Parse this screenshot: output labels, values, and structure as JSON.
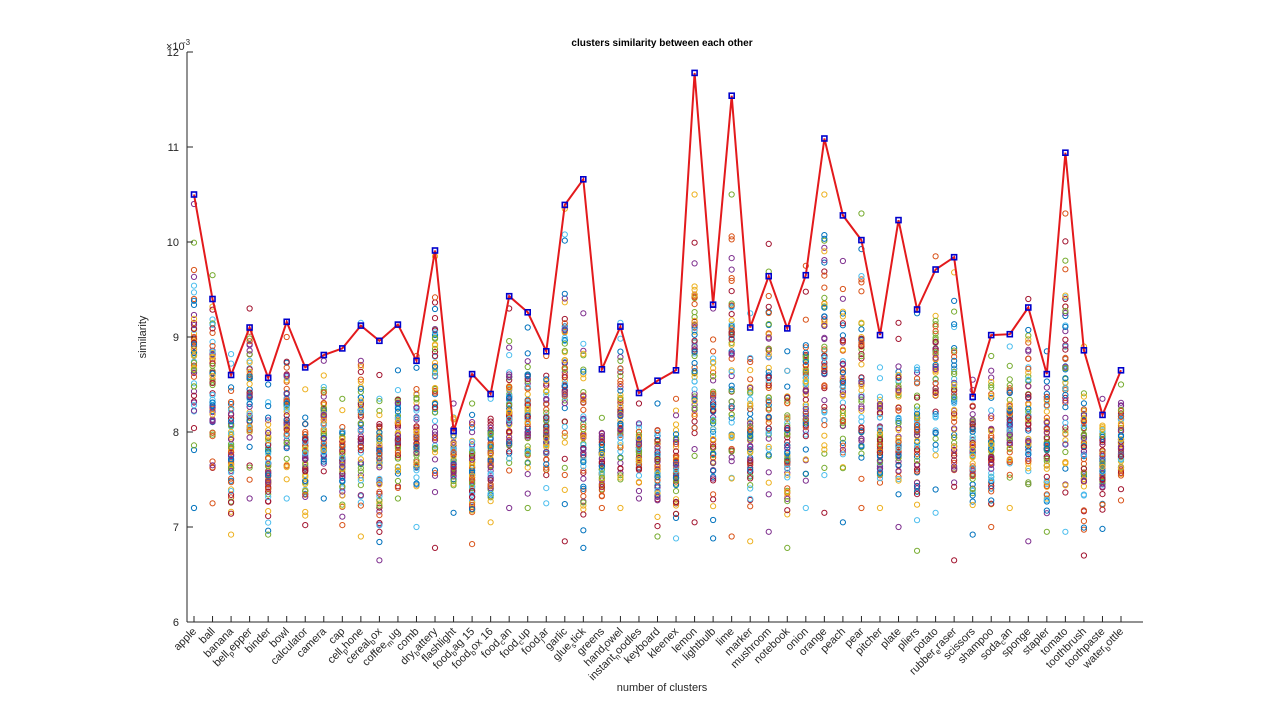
{
  "chart_data": {
    "type": "scatter",
    "title": "clusters similarity between each other",
    "xlabel": "number of clusters",
    "ylabel": "similarity",
    "y_exponent_label": "×10",
    "y_exponent_power": "-3",
    "ylim": [
      6,
      12
    ],
    "yticks": [
      6,
      7,
      8,
      9,
      10,
      11,
      12
    ],
    "grid": false,
    "categories": [
      "apple",
      "ball",
      "banana",
      "bell_pepper",
      "binder",
      "bowl",
      "calculator",
      "camera",
      "cap",
      "cell_phone",
      "cereal_box",
      "coffee_mug",
      "comb",
      "dry_battery",
      "flashlight",
      "food_bag 15",
      "food_box 16",
      "food_can",
      "food_cup",
      "food_jar",
      "garlic",
      "glue_stick",
      "greens",
      "hand_towel",
      "instant_noodles",
      "keyboard",
      "kleenex",
      "lemon",
      "lightbulb",
      "lime",
      "marker",
      "mushroom",
      "notebook",
      "onion",
      "orange",
      "peach",
      "pear",
      "pitcher",
      "plate",
      "pliers",
      "potato",
      "rubber_eraser",
      "scissors",
      "shampoo",
      "soda_can",
      "sponge",
      "stapler",
      "tomato",
      "toothbrush",
      "toothpaste",
      "water_bottle"
    ],
    "tick_labels": [
      {
        "main": "apple"
      },
      {
        "main": "ball"
      },
      {
        "main": "banana"
      },
      {
        "main": "bell",
        "sub": "p",
        "rest": "epper"
      },
      {
        "main": "binder"
      },
      {
        "main": "bowl"
      },
      {
        "main": "calculator"
      },
      {
        "main": "camera"
      },
      {
        "main": "cap"
      },
      {
        "main": "cell",
        "sub": "p",
        "rest": "hone"
      },
      {
        "main": "cereal",
        "sub": "b",
        "rest": "ox"
      },
      {
        "main": "coffee",
        "sub": "m",
        "rest": "ug"
      },
      {
        "main": "comb"
      },
      {
        "main": "dry",
        "sub": "b",
        "rest": "attery"
      },
      {
        "main": "flashlight"
      },
      {
        "main": "food",
        "sub": "b",
        "rest": "ag 15"
      },
      {
        "main": "food",
        "sub": "b",
        "rest": "ox 16"
      },
      {
        "main": "food",
        "sub": "c",
        "rest": "an"
      },
      {
        "main": "food",
        "sub": "c",
        "rest": "up"
      },
      {
        "main": "food",
        "sub": "j",
        "rest": "ar"
      },
      {
        "main": "garlic"
      },
      {
        "main": "glue",
        "sub": "s",
        "rest": "tick"
      },
      {
        "main": "greens"
      },
      {
        "main": "hand",
        "sub": "t",
        "rest": "owel"
      },
      {
        "main": "instant",
        "sub": "n",
        "rest": "oodles"
      },
      {
        "main": "keyboard"
      },
      {
        "main": "kleenex"
      },
      {
        "main": "lemon"
      },
      {
        "main": "lightbulb"
      },
      {
        "main": "lime"
      },
      {
        "main": "marker"
      },
      {
        "main": "mushroom"
      },
      {
        "main": "notebook"
      },
      {
        "main": "onion"
      },
      {
        "main": "orange"
      },
      {
        "main": "peach"
      },
      {
        "main": "pear"
      },
      {
        "main": "pitcher"
      },
      {
        "main": "plate"
      },
      {
        "main": "pliers"
      },
      {
        "main": "potato"
      },
      {
        "main": "rubber",
        "sub": "e",
        "rest": "raser"
      },
      {
        "main": "scissors"
      },
      {
        "main": "shampoo"
      },
      {
        "main": "soda",
        "sub": "c",
        "rest": "an"
      },
      {
        "main": "sponge"
      },
      {
        "main": "stapler"
      },
      {
        "main": "tomato"
      },
      {
        "main": "toothbrush"
      },
      {
        "main": "toothpaste"
      },
      {
        "main": "water",
        "sub": "b",
        "rest": "ottle"
      }
    ],
    "line_series": {
      "color": "#e31a1c",
      "marker_color": "#0000cc",
      "values": [
        10.5,
        9.4,
        8.6,
        9.1,
        8.57,
        9.16,
        8.68,
        8.81,
        8.88,
        9.12,
        8.96,
        9.13,
        8.75,
        9.91,
        8.01,
        8.61,
        8.4,
        9.43,
        9.26,
        8.85,
        10.39,
        10.66,
        8.66,
        9.11,
        8.41,
        8.54,
        8.65,
        11.78,
        9.34,
        11.54,
        9.1,
        9.64,
        9.09,
        9.65,
        11.09,
        10.28,
        10.02,
        9.02,
        10.23,
        9.29,
        9.71,
        9.84,
        8.37,
        9.02,
        9.03,
        9.31,
        8.61,
        10.94,
        8.86,
        8.18,
        8.65
      ]
    },
    "scatter_colors": [
      "#0072bd",
      "#d95319",
      "#edb120",
      "#7e2f8e",
      "#77ac30",
      "#4dbeee",
      "#a2142f"
    ],
    "scatter_ranges": [
      [
        7.2,
        10.4
      ],
      [
        7.25,
        9.65
      ],
      [
        6.92,
        8.82
      ],
      [
        7.3,
        9.3
      ],
      [
        6.92,
        8.5
      ],
      [
        7.3,
        9.0
      ],
      [
        7.02,
        8.45
      ],
      [
        7.3,
        8.75
      ],
      [
        7.02,
        8.35
      ],
      [
        6.9,
        9.15
      ],
      [
        6.65,
        8.6
      ],
      [
        7.3,
        8.65
      ],
      [
        7.0,
        8.8
      ],
      [
        6.78,
        9.85
      ],
      [
        7.15,
        8.3
      ],
      [
        6.82,
        8.3
      ],
      [
        7.05,
        8.35
      ],
      [
        7.2,
        9.3
      ],
      [
        7.2,
        9.1
      ],
      [
        7.25,
        8.8
      ],
      [
        6.85,
        10.35
      ],
      [
        6.78,
        9.25
      ],
      [
        7.2,
        8.15
      ],
      [
        7.2,
        9.15
      ],
      [
        7.3,
        8.3
      ],
      [
        6.9,
        8.3
      ],
      [
        6.88,
        8.35
      ],
      [
        7.05,
        10.5
      ],
      [
        6.88,
        9.3
      ],
      [
        6.9,
        10.5
      ],
      [
        6.85,
        9.25
      ],
      [
        6.95,
        9.98
      ],
      [
        6.78,
        8.85
      ],
      [
        7.2,
        9.75
      ],
      [
        7.15,
        10.5
      ],
      [
        7.05,
        9.8
      ],
      [
        7.2,
        10.3
      ],
      [
        7.2,
        8.68
      ],
      [
        7.0,
        9.15
      ],
      [
        6.75,
        9.25
      ],
      [
        7.15,
        9.85
      ],
      [
        6.65,
        9.68
      ],
      [
        6.92,
        8.55
      ],
      [
        7.0,
        8.8
      ],
      [
        7.2,
        8.9
      ],
      [
        6.85,
        9.4
      ],
      [
        6.95,
        8.85
      ],
      [
        6.95,
        10.3
      ],
      [
        6.7,
        8.9
      ],
      [
        6.98,
        8.35
      ],
      [
        7.28,
        8.5
      ]
    ],
    "points_per_category": 60
  }
}
